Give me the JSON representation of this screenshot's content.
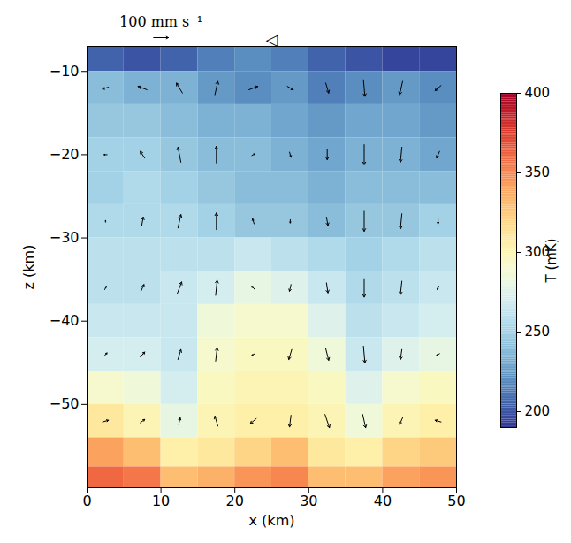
{
  "chart_data": {
    "type": "heatmap",
    "x_label": "x (km)",
    "y_label": "z (km)",
    "xlim": [
      0,
      50
    ],
    "ylim": [
      -60,
      -7
    ],
    "xticks": [
      0,
      10,
      20,
      30,
      40,
      50
    ],
    "yticks": [
      -10,
      -20,
      -30,
      -40,
      -50
    ],
    "grid": false,
    "heatmap": {
      "x": [
        2.5,
        7.5,
        12.5,
        17.5,
        22.5,
        27.5,
        32.5,
        37.5,
        42.5,
        47.5
      ],
      "z": [
        -8,
        -12,
        -16,
        -20,
        -24,
        -28,
        -32,
        -36,
        -40,
        -44,
        -48,
        -52,
        -56,
        -59
      ],
      "T": [
        [
          205,
          200,
          205,
          215,
          220,
          215,
          205,
          200,
          195,
          195
        ],
        [
          240,
          235,
          235,
          225,
          220,
          225,
          215,
          220,
          225,
          220
        ],
        [
          245,
          245,
          240,
          235,
          235,
          230,
          225,
          230,
          230,
          225
        ],
        [
          250,
          250,
          245,
          240,
          240,
          235,
          230,
          235,
          235,
          230
        ],
        [
          250,
          255,
          250,
          245,
          240,
          240,
          235,
          240,
          240,
          240
        ],
        [
          255,
          255,
          255,
          250,
          245,
          245,
          240,
          245,
          245,
          250
        ],
        [
          260,
          260,
          260,
          260,
          265,
          260,
          255,
          250,
          255,
          260
        ],
        [
          260,
          260,
          265,
          270,
          280,
          275,
          265,
          255,
          260,
          265
        ],
        [
          265,
          265,
          265,
          285,
          290,
          290,
          275,
          260,
          265,
          270
        ],
        [
          270,
          270,
          265,
          290,
          295,
          295,
          285,
          265,
          275,
          280
        ],
        [
          290,
          285,
          270,
          295,
          300,
          300,
          295,
          275,
          290,
          295
        ],
        [
          310,
          300,
          280,
          300,
          305,
          305,
          300,
          285,
          300,
          305
        ],
        [
          340,
          330,
          305,
          310,
          320,
          330,
          310,
          305,
          320,
          325
        ],
        [
          360,
          355,
          330,
          335,
          345,
          350,
          330,
          330,
          340,
          345
        ]
      ]
    },
    "colorbar": {
      "label": "T (mK)",
      "lim": [
        190,
        400
      ],
      "ticks": [
        200,
        250,
        300,
        350,
        400
      ]
    },
    "velocity": {
      "x": [
        2.5,
        7.5,
        12.5,
        17.5,
        22.5,
        27.5,
        32.5,
        37.5,
        42.5,
        47.5
      ],
      "z": [
        -12,
        -20,
        -28,
        -36,
        -44,
        -52
      ],
      "u": [
        [
          -40,
          -60,
          -40,
          20,
          60,
          40,
          20,
          10,
          -20,
          -40
        ],
        [
          -20,
          -30,
          -20,
          0,
          20,
          10,
          0,
          0,
          -10,
          -20
        ],
        [
          0,
          10,
          20,
          0,
          -10,
          0,
          10,
          0,
          -10,
          0
        ],
        [
          10,
          20,
          30,
          10,
          -20,
          -10,
          10,
          0,
          -10,
          -10
        ],
        [
          20,
          30,
          20,
          10,
          -20,
          -20,
          20,
          10,
          -10,
          -20
        ],
        [
          40,
          30,
          10,
          -20,
          -40,
          -10,
          30,
          20,
          -20,
          -40
        ]
      ],
      "w": [
        [
          -10,
          20,
          60,
          80,
          20,
          -20,
          -60,
          -100,
          -80,
          -30
        ],
        [
          0,
          40,
          90,
          100,
          10,
          -30,
          -60,
          -120,
          -90,
          -40
        ],
        [
          10,
          50,
          80,
          100,
          30,
          -20,
          -50,
          -120,
          -90,
          -30
        ],
        [
          20,
          40,
          70,
          90,
          20,
          -40,
          -60,
          -110,
          -80,
          -20
        ],
        [
          20,
          30,
          60,
          80,
          -10,
          -60,
          -70,
          -100,
          -60,
          -10
        ],
        [
          10,
          20,
          40,
          60,
          -30,
          -70,
          -80,
          -80,
          -40,
          10
        ]
      ]
    },
    "scale_arrow": {
      "value": 100,
      "label": "100 mm s⁻¹",
      "x": 10
    },
    "annotations": [
      {
        "text": "◁",
        "x": 25
      }
    ]
  }
}
